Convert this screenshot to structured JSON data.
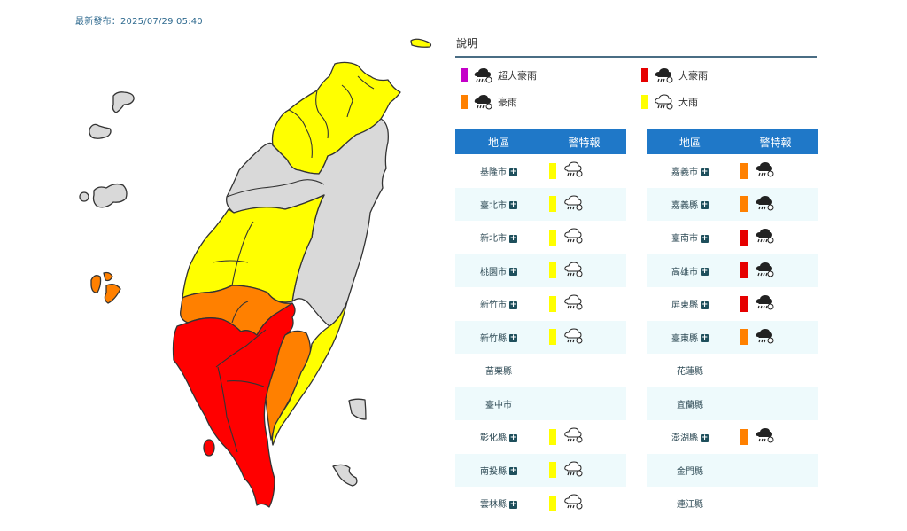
{
  "header": {
    "published": "最新發布：2025/07/29 05:40"
  },
  "legend": {
    "title": "說明",
    "items": [
      {
        "label": "超大豪雨",
        "color": "#c400c8",
        "icon": "extreme-torrential-rain-icon",
        "filled": true
      },
      {
        "label": "大豪雨",
        "color": "#e60000",
        "icon": "torrential-rain-icon",
        "filled": true
      },
      {
        "label": "豪雨",
        "color": "#ff8000",
        "icon": "extremely-heavy-rain-icon",
        "filled": true
      },
      {
        "label": "大雨",
        "color": "#ffff00",
        "icon": "heavy-rain-icon",
        "filled": false
      }
    ]
  },
  "table_headers": {
    "region": "地區",
    "warning": "警特報"
  },
  "left_table": [
    {
      "region": "基隆市",
      "level": "大雨",
      "color": "#ffff00",
      "filled": false,
      "has_detail": true
    },
    {
      "region": "臺北市",
      "level": "大雨",
      "color": "#ffff00",
      "filled": false,
      "has_detail": true
    },
    {
      "region": "新北市",
      "level": "大雨",
      "color": "#ffff00",
      "filled": false,
      "has_detail": true
    },
    {
      "region": "桃園市",
      "level": "大雨",
      "color": "#ffff00",
      "filled": false,
      "has_detail": true
    },
    {
      "region": "新竹市",
      "level": "大雨",
      "color": "#ffff00",
      "filled": false,
      "has_detail": true
    },
    {
      "region": "新竹縣",
      "level": "大雨",
      "color": "#ffff00",
      "filled": false,
      "has_detail": true
    },
    {
      "region": "苗栗縣",
      "level": "",
      "color": "",
      "filled": false,
      "has_detail": false
    },
    {
      "region": "臺中市",
      "level": "",
      "color": "",
      "filled": false,
      "has_detail": false
    },
    {
      "region": "彰化縣",
      "level": "大雨",
      "color": "#ffff00",
      "filled": false,
      "has_detail": true
    },
    {
      "region": "南投縣",
      "level": "大雨",
      "color": "#ffff00",
      "filled": false,
      "has_detail": true
    },
    {
      "region": "雲林縣",
      "level": "大雨",
      "color": "#ffff00",
      "filled": false,
      "has_detail": true
    }
  ],
  "right_table": [
    {
      "region": "嘉義市",
      "level": "豪雨",
      "color": "#ff8000",
      "filled": true,
      "has_detail": true
    },
    {
      "region": "嘉義縣",
      "level": "豪雨",
      "color": "#ff8000",
      "filled": true,
      "has_detail": true
    },
    {
      "region": "臺南市",
      "level": "大豪雨",
      "color": "#e60000",
      "filled": true,
      "has_detail": true
    },
    {
      "region": "高雄市",
      "level": "大豪雨",
      "color": "#e60000",
      "filled": true,
      "has_detail": true
    },
    {
      "region": "屏東縣",
      "level": "大豪雨",
      "color": "#e60000",
      "filled": true,
      "has_detail": true
    },
    {
      "region": "臺東縣",
      "level": "豪雨",
      "color": "#ff8000",
      "filled": true,
      "has_detail": true
    },
    {
      "region": "花蓮縣",
      "level": "",
      "color": "",
      "filled": false,
      "has_detail": false
    },
    {
      "region": "宜蘭縣",
      "level": "",
      "color": "",
      "filled": false,
      "has_detail": false
    },
    {
      "region": "澎湖縣",
      "level": "豪雨",
      "color": "#ff8000",
      "filled": true,
      "has_detail": true
    },
    {
      "region": "金門縣",
      "level": "",
      "color": "",
      "filled": false,
      "has_detail": false
    },
    {
      "region": "連江縣",
      "level": "",
      "color": "",
      "filled": false,
      "has_detail": false
    }
  ],
  "map_colors": {
    "heavy": "#ffff00",
    "extremely_heavy": "#ff8000",
    "torrential": "#ff0000",
    "none": "#d9d9d9",
    "border": "#333333"
  }
}
